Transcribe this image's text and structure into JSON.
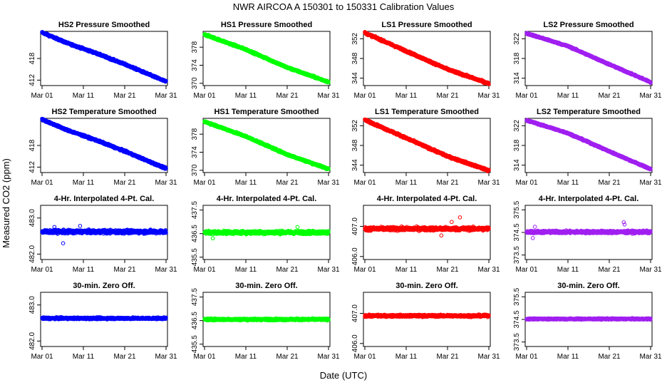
{
  "figure": {
    "title": "NWR   AIRCOA A   150301 to 150331   Calibration Values",
    "ylabel": "Measured CO2 (ppm)",
    "xlabel": "Date (UTC)"
  },
  "chart_data": [
    {
      "type": "scatter",
      "title": "HS2 Pressure Smoothed",
      "color": "#0000ff",
      "xlim": [
        1,
        31
      ],
      "ylim": [
        410.5,
        425.5
      ],
      "yticks": [
        412,
        418
      ],
      "xticks": [
        "Mar 01",
        "Mar 11",
        "Mar 21",
        "Mar 31"
      ],
      "trend": [
        [
          1,
          425.2
        ],
        [
          7,
          422.3
        ],
        [
          14,
          419.5
        ],
        [
          21,
          416.4
        ],
        [
          31,
          411.6
        ]
      ],
      "noise": 0.25
    },
    {
      "type": "scatter",
      "title": "HS1 Pressure Smoothed",
      "color": "#00ff00",
      "xlim": [
        1,
        31
      ],
      "ylim": [
        369.5,
        381.5
      ],
      "yticks": [
        370,
        374,
        378
      ],
      "xticks": [
        "Mar 01",
        "Mar 11",
        "Mar 21",
        "Mar 31"
      ],
      "trend": [
        [
          1,
          380.8
        ],
        [
          11,
          377.5
        ],
        [
          21,
          373.5
        ],
        [
          31,
          370.3
        ]
      ],
      "noise": 0.2
    },
    {
      "type": "scatter",
      "title": "LS1 Pressure Smoothed",
      "color": "#ff0000",
      "xlim": [
        1,
        31
      ],
      "ylim": [
        342.5,
        353.5
      ],
      "yticks": [
        344,
        348,
        352
      ],
      "xticks": [
        "Mar 01",
        "Mar 11",
        "Mar 21",
        "Mar 31"
      ],
      "trend": [
        [
          1,
          353.2
        ],
        [
          11,
          349.5
        ],
        [
          21,
          345.8
        ],
        [
          31,
          342.9
        ]
      ],
      "noise": 0.2
    },
    {
      "type": "scatter",
      "title": "LS2 Pressure Smoothed",
      "color": "#a020f0",
      "xlim": [
        1,
        31
      ],
      "ylim": [
        312.5,
        323.5
      ],
      "yticks": [
        314,
        318,
        322
      ],
      "xticks": [
        "Mar 01",
        "Mar 11",
        "Mar 21",
        "Mar 31"
      ],
      "trend": [
        [
          1,
          323.1
        ],
        [
          11,
          320.5
        ],
        [
          21,
          316.8
        ],
        [
          31,
          313.2
        ]
      ],
      "noise": 0.15
    },
    {
      "type": "scatter",
      "title": "HS2 Temperature Smoothed",
      "color": "#0000ff",
      "xlim": [
        1,
        31
      ],
      "ylim": [
        410.5,
        425.5
      ],
      "yticks": [
        412,
        418
      ],
      "xticks": [
        "Mar 01",
        "Mar 11",
        "Mar 21",
        "Mar 31"
      ],
      "trend": [
        [
          1,
          425.2
        ],
        [
          7,
          422.3
        ],
        [
          14,
          419.5
        ],
        [
          21,
          416.4
        ],
        [
          31,
          411.6
        ]
      ],
      "noise": 0.25
    },
    {
      "type": "scatter",
      "title": "HS1 Temperature Smoothed",
      "color": "#00ff00",
      "xlim": [
        1,
        31
      ],
      "ylim": [
        369.5,
        381.5
      ],
      "yticks": [
        370,
        374,
        378
      ],
      "xticks": [
        "Mar 01",
        "Mar 11",
        "Mar 21",
        "Mar 31"
      ],
      "trend": [
        [
          1,
          380.8
        ],
        [
          11,
          377.5
        ],
        [
          21,
          373.5
        ],
        [
          31,
          370.3
        ]
      ],
      "noise": 0.2
    },
    {
      "type": "scatter",
      "title": "LS1 Temperature Smoothed",
      "color": "#ff0000",
      "xlim": [
        1,
        31
      ],
      "ylim": [
        342.5,
        353.5
      ],
      "yticks": [
        344,
        348,
        352
      ],
      "xticks": [
        "Mar 01",
        "Mar 11",
        "Mar 21",
        "Mar 31"
      ],
      "trend": [
        [
          1,
          353.2
        ],
        [
          11,
          349.5
        ],
        [
          21,
          345.8
        ],
        [
          31,
          342.9
        ]
      ],
      "noise": 0.2
    },
    {
      "type": "scatter",
      "title": "LS2 Temperature Smoothed",
      "color": "#a020f0",
      "xlim": [
        1,
        31
      ],
      "ylim": [
        312.5,
        323.5
      ],
      "yticks": [
        314,
        318,
        322
      ],
      "xticks": [
        "Mar 01",
        "Mar 11",
        "Mar 21",
        "Mar 31"
      ],
      "trend": [
        [
          1,
          323.1
        ],
        [
          11,
          320.5
        ],
        [
          21,
          316.8
        ],
        [
          31,
          313.2
        ]
      ],
      "noise": 0.15
    },
    {
      "type": "scatter",
      "title": "4-Hr. Interpolated 4-Pt. Cal.",
      "color": "#0000ff",
      "xlim": [
        1,
        31
      ],
      "ylim": [
        481.85,
        483.35
      ],
      "yticks": [
        482.0,
        483.0
      ],
      "tick_decimals": 1,
      "xticks": [
        "Mar 01",
        "Mar 11",
        "Mar 21",
        "Mar 31"
      ],
      "trend": [
        [
          1,
          482.62
        ],
        [
          31,
          482.62
        ]
      ],
      "noise": 0.05,
      "outliers": [
        [
          6.1,
          482.3
        ],
        [
          10.2,
          482.78
        ],
        [
          4.0,
          482.75
        ]
      ]
    },
    {
      "type": "scatter",
      "title": "4-Hr. Interpolated 4-Pt. Cal.",
      "color": "#00ff00",
      "xlim": [
        1,
        31
      ],
      "ylim": [
        435.4,
        437.7
      ],
      "yticks": [
        435.5,
        436.5,
        437.5
      ],
      "tick_decimals": 1,
      "xticks": [
        "Mar 01",
        "Mar 11",
        "Mar 21",
        "Mar 31"
      ],
      "trend": [
        [
          1,
          436.55
        ],
        [
          31,
          436.55
        ]
      ],
      "noise": 0.07,
      "outliers": [
        [
          3.0,
          436.3
        ],
        [
          23.5,
          436.78
        ]
      ]
    },
    {
      "type": "scatter",
      "title": "4-Hr. Interpolated 4-Pt. Cal.",
      "color": "#ff0000",
      "xlim": [
        1,
        31
      ],
      "ylim": [
        405.9,
        407.7
      ],
      "yticks": [
        406.0,
        407.0
      ],
      "tick_decimals": 1,
      "xticks": [
        "Mar 01",
        "Mar 11",
        "Mar 21",
        "Mar 31"
      ],
      "trend": [
        [
          1,
          406.92
        ],
        [
          31,
          406.92
        ]
      ],
      "noise": 0.06,
      "outliers": [
        [
          24.0,
          407.3
        ],
        [
          19.5,
          406.7
        ],
        [
          22.0,
          407.15
        ]
      ]
    },
    {
      "type": "scatter",
      "title": "4-Hr. Interpolated 4-Pt. Cal.",
      "color": "#a020f0",
      "xlim": [
        1,
        31
      ],
      "ylim": [
        373.3,
        375.7
      ],
      "yticks": [
        373.5,
        374.5,
        375.5
      ],
      "tick_decimals": 1,
      "xticks": [
        "Mar 01",
        "Mar 11",
        "Mar 21",
        "Mar 31"
      ],
      "trend": [
        [
          1,
          374.52
        ],
        [
          31,
          374.52
        ]
      ],
      "noise": 0.06,
      "outliers": [
        [
          2.5,
          374.25
        ],
        [
          3.0,
          374.75
        ],
        [
          24.5,
          374.95
        ],
        [
          24.7,
          374.85
        ]
      ]
    },
    {
      "type": "scatter",
      "title": "30-min. Zero Off.",
      "color": "#0000ff",
      "xlim": [
        1,
        31
      ],
      "ylim": [
        481.85,
        483.35
      ],
      "yticks": [
        482.0,
        483.0
      ],
      "tick_decimals": 1,
      "xticks": [
        "Mar 01",
        "Mar 11",
        "Mar 21",
        "Mar 31"
      ],
      "trend": [
        [
          1,
          482.63
        ],
        [
          31,
          482.63
        ]
      ],
      "noise": 0.025
    },
    {
      "type": "scatter",
      "title": "30-min. Zero Off.",
      "color": "#00ff00",
      "xlim": [
        1,
        31
      ],
      "ylim": [
        435.4,
        437.7
      ],
      "yticks": [
        435.5,
        436.5,
        437.5
      ],
      "tick_decimals": 1,
      "xticks": [
        "Mar 01",
        "Mar 11",
        "Mar 21",
        "Mar 31"
      ],
      "trend": [
        [
          1,
          436.55
        ],
        [
          31,
          436.55
        ]
      ],
      "noise": 0.04
    },
    {
      "type": "scatter",
      "title": "30-min. Zero Off.",
      "color": "#ff0000",
      "xlim": [
        1,
        31
      ],
      "ylim": [
        405.9,
        407.7
      ],
      "yticks": [
        406.0,
        407.0
      ],
      "tick_decimals": 1,
      "xticks": [
        "Mar 01",
        "Mar 11",
        "Mar 21",
        "Mar 31"
      ],
      "trend": [
        [
          1,
          406.92
        ],
        [
          31,
          406.92
        ]
      ],
      "noise": 0.035
    },
    {
      "type": "scatter",
      "title": "30-min. Zero Off.",
      "color": "#a020f0",
      "xlim": [
        1,
        31
      ],
      "ylim": [
        373.3,
        375.7
      ],
      "yticks": [
        373.5,
        374.5,
        375.5
      ],
      "tick_decimals": 1,
      "xticks": [
        "Mar 01",
        "Mar 11",
        "Mar 21",
        "Mar 31"
      ],
      "trend": [
        [
          1,
          374.52
        ],
        [
          31,
          374.52
        ]
      ],
      "noise": 0.03
    }
  ]
}
